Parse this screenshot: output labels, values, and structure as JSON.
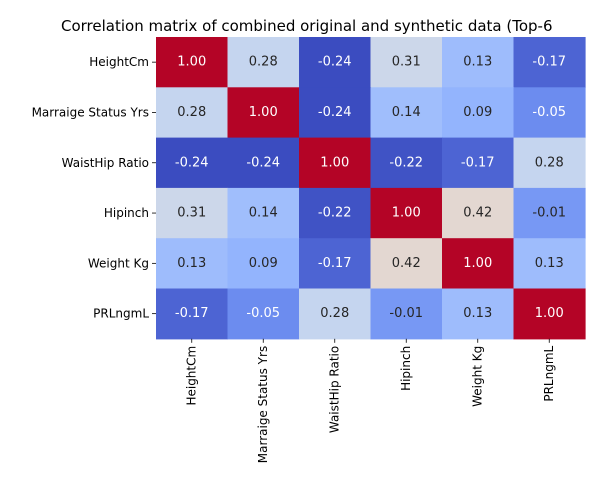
{
  "chart_data": {
    "type": "heatmap",
    "title": "Correlation matrix of combined original and synthetic data (Top-6",
    "rows": [
      "HeightCm",
      "Marraige Status Yrs",
      "WaistHip Ratio",
      "Hipinch",
      "Weight Kg",
      "PRLngmL"
    ],
    "columns": [
      "HeightCm",
      "Marraige Status Yrs",
      "WaistHip Ratio",
      "Hipinch",
      "Weight Kg",
      "PRLngmL"
    ],
    "values": [
      [
        1.0,
        0.28,
        -0.24,
        0.31,
        0.13,
        -0.17
      ],
      [
        0.28,
        1.0,
        -0.24,
        0.14,
        0.09,
        -0.05
      ],
      [
        -0.24,
        -0.24,
        1.0,
        -0.22,
        -0.17,
        0.28
      ],
      [
        0.31,
        0.14,
        -0.22,
        1.0,
        0.42,
        -0.01
      ],
      [
        0.13,
        0.09,
        -0.17,
        0.42,
        1.0,
        0.13
      ],
      [
        -0.17,
        -0.05,
        0.28,
        -0.01,
        0.13,
        1.0
      ]
    ],
    "value_format": "0.00",
    "colormap": "coolwarm",
    "color_range": [
      -0.24,
      1.0
    ],
    "colorbar": false,
    "grid": false
  }
}
